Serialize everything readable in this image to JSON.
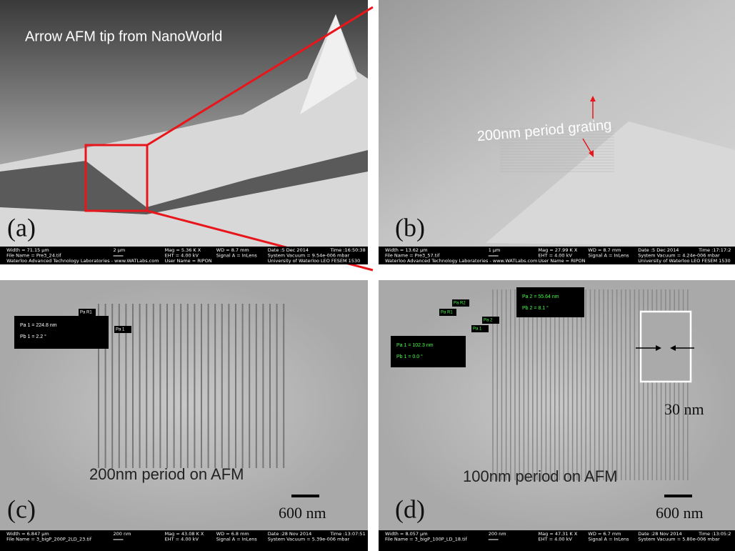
{
  "panels": [
    {
      "label": "(a)",
      "caption": "Arrow AFM tip from NanoWorld",
      "info": [
        [
          "Width = 71.15 µm",
          "File Name = Pre3_24.tif",
          "Waterloo Advanced Technology Laboratories - www.WATLabs.com"
        ],
        [
          "2 µm"
        ],
        [
          "Mag = 5.36 K X",
          "EHT = 4.00 kV",
          "User Name = RIPON"
        ],
        [
          "WD = 8.7 mm",
          "Signal A = InLens"
        ],
        [
          "Date :5 Dec 2014",
          "System Vacuum = 9.54e-006 mbar",
          "University of Waterloo  LEO FESEM 1530"
        ],
        [
          "Time :16:50:38"
        ]
      ]
    },
    {
      "label": "(b)",
      "caption": "200nm period grating",
      "info": [
        [
          "Width = 13.62 µm",
          "File Name = Pre3_57.tif",
          "Waterloo Advanced Technology Laboratories - www.WATLabs.com"
        ],
        [
          "1 µm"
        ],
        [
          "Mag = 27.99 K X",
          "EHT = 4.00 kV",
          "User Name = RIPON"
        ],
        [
          "WD = 8.7 mm",
          "Signal A = InLens"
        ],
        [
          "Date :5 Dec 2014",
          "System Vacuum = 4.24e-006 mbar",
          "University of Waterloo  LEO FESEM 1530"
        ],
        [
          "Time :17:17:2"
        ]
      ]
    },
    {
      "label": "(c)",
      "caption": "200nm period on AFM",
      "scale": "600 nm",
      "readouts": [
        [
          "Pa 1 = 224.8 nm",
          "Pb 1 = 2.2 °"
        ]
      ],
      "markers": [
        "Pa R1",
        "Pa 1"
      ],
      "info": [
        [
          "Width = 6.847 µm",
          "File Name = 3_bigP_200P_2LD_23.tif"
        ],
        [
          "200 nm"
        ],
        [
          "Mag = 43.08 K X",
          "EHT = 4.00 kV"
        ],
        [
          "WD = 6.8 mm",
          "Signal A = InLens"
        ],
        [
          "Date :28 Nov 2014",
          "System Vacuum = 5.39e-006 mbar"
        ],
        [
          "Time :13:07:51"
        ]
      ]
    },
    {
      "label": "(d)",
      "caption": "100nm period on AFM",
      "scale": "600 nm",
      "inset": "30 nm",
      "readouts": [
        [
          "Pa 1 = 102.3 nm",
          "Pb 1 = 0.0 °"
        ],
        [
          "Pa 2 = 55.64 nm",
          "Pb 2 = 8.1 °"
        ]
      ],
      "markers": [
        "Pa R2",
        "Pa R1",
        "Pa 2",
        "Pa 1"
      ],
      "info": [
        [
          "Width = 8.057 µm",
          "File Name = 3_bigP_100P_LD_18.tif"
        ],
        [
          "200 nm"
        ],
        [
          "Mag = 47.31 K X",
          "EHT = 4.00 kV"
        ],
        [
          "WD = 6.7 mm",
          "Signal A = InLens"
        ],
        [
          "Date :28 Nov 2014",
          "System Vacuum = 5.80e-006 mbar"
        ],
        [
          "Time :13:05:2"
        ]
      ]
    }
  ]
}
